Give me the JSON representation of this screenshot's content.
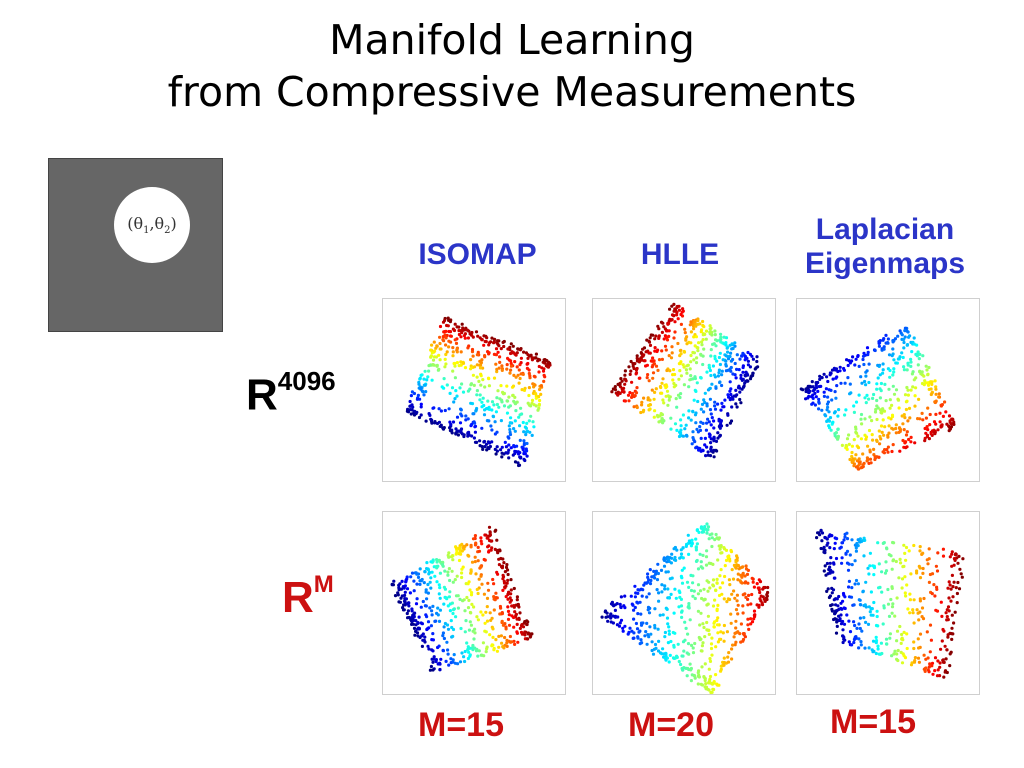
{
  "title": {
    "line1": "Manifold Learning",
    "line2": "from Compressive Measurements"
  },
  "image_tile": {
    "label_open": "(θ",
    "sub1": "1",
    "sep": ",θ",
    "sub2": "2",
    "label_close": ")"
  },
  "columns": [
    {
      "label_line1": "ISOMAP",
      "label_line2": ""
    },
    {
      "label_line1": "HLLE",
      "label_line2": ""
    },
    {
      "label_line1": "Laplacian",
      "label_line2": "Eigenmaps"
    }
  ],
  "rows": [
    {
      "base": "R",
      "sup": "4096",
      "color": "#000000"
    },
    {
      "base": "R",
      "sup": "M",
      "color": "#cc1111"
    }
  ],
  "m_labels": [
    "M=15",
    "M=20",
    "M=15"
  ],
  "colors": {
    "header": "#2b35c8",
    "red_label": "#cc1111",
    "tile_gray": "#666666",
    "colormap": "jet"
  }
}
